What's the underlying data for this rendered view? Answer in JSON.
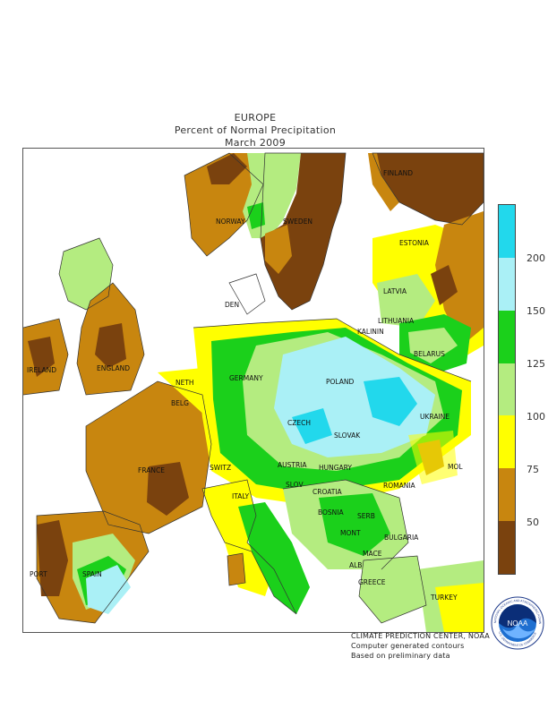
{
  "titles": {
    "line1": "EUROPE",
    "line2": "Percent of Normal Precipitation",
    "line3": "March 2009"
  },
  "map": {
    "labels": [
      {
        "id": "finland",
        "text": "FINLAND"
      },
      {
        "id": "norway",
        "text": "NORWAY"
      },
      {
        "id": "sweden",
        "text": "SWEDEN"
      },
      {
        "id": "estonia",
        "text": "ESTONIA"
      },
      {
        "id": "latvia",
        "text": "LATVIA"
      },
      {
        "id": "lithuania",
        "text": "LITHUANIA"
      },
      {
        "id": "denmark",
        "text": "DEN"
      },
      {
        "id": "ireland",
        "text": "IRELAND"
      },
      {
        "id": "england",
        "text": "ENGLAND"
      },
      {
        "id": "kalinin",
        "text": "KALININ"
      },
      {
        "id": "belarus",
        "text": "BELARUS"
      },
      {
        "id": "neth",
        "text": "NETH"
      },
      {
        "id": "germany",
        "text": "GERMANY"
      },
      {
        "id": "poland",
        "text": "POLAND"
      },
      {
        "id": "belg",
        "text": "BELG"
      },
      {
        "id": "ukraine",
        "text": "UKRAINE"
      },
      {
        "id": "czech",
        "text": "CZECH"
      },
      {
        "id": "slovak",
        "text": "SLOVAK"
      },
      {
        "id": "france",
        "text": "FRANCE"
      },
      {
        "id": "austria",
        "text": "AUSTRIA"
      },
      {
        "id": "hungary",
        "text": "HUNGARY"
      },
      {
        "id": "moldova",
        "text": "MOL"
      },
      {
        "id": "switz",
        "text": "SWITZ"
      },
      {
        "id": "slov",
        "text": "SLOV"
      },
      {
        "id": "romania",
        "text": "ROMANIA"
      },
      {
        "id": "croatia",
        "text": "CROATIA"
      },
      {
        "id": "italy",
        "text": "ITALY"
      },
      {
        "id": "bosnia",
        "text": "BOSNIA"
      },
      {
        "id": "serb",
        "text": "SERB"
      },
      {
        "id": "mont",
        "text": "MONT"
      },
      {
        "id": "bulgaria",
        "text": "BULGARIA"
      },
      {
        "id": "maced",
        "text": "MACE"
      },
      {
        "id": "port",
        "text": "PORT"
      },
      {
        "id": "spain",
        "text": "SPAIN"
      },
      {
        "id": "alb",
        "text": "ALB"
      },
      {
        "id": "greece",
        "text": "GREECE"
      },
      {
        "id": "turkey",
        "text": "TURKEY"
      }
    ]
  },
  "legend": {
    "ticks": [
      "200",
      "150",
      "125",
      "100",
      "75",
      "50"
    ],
    "colors": [
      "#22d8ec",
      "#aaf0f6",
      "#1bd01b",
      "#b4ec80",
      "#ffff00",
      "#c8860f",
      "#7a420e"
    ],
    "bins": [
      "> 200",
      "150-200",
      "125-150",
      "100-125",
      "75-100",
      "50-75",
      "< 50"
    ]
  },
  "credits": {
    "line1": "CLIMATE PREDICTION CENTER, NOAA",
    "line2": "Computer generated contours",
    "line3": "Based on preliminary data"
  },
  "logo": {
    "text": "NOAA",
    "ring_top": "NATIONAL OCEANIC AND ATMOSPHERIC ADMINISTRATION",
    "ring_bottom": "U.S. DEPARTMENT OF COMMERCE"
  }
}
